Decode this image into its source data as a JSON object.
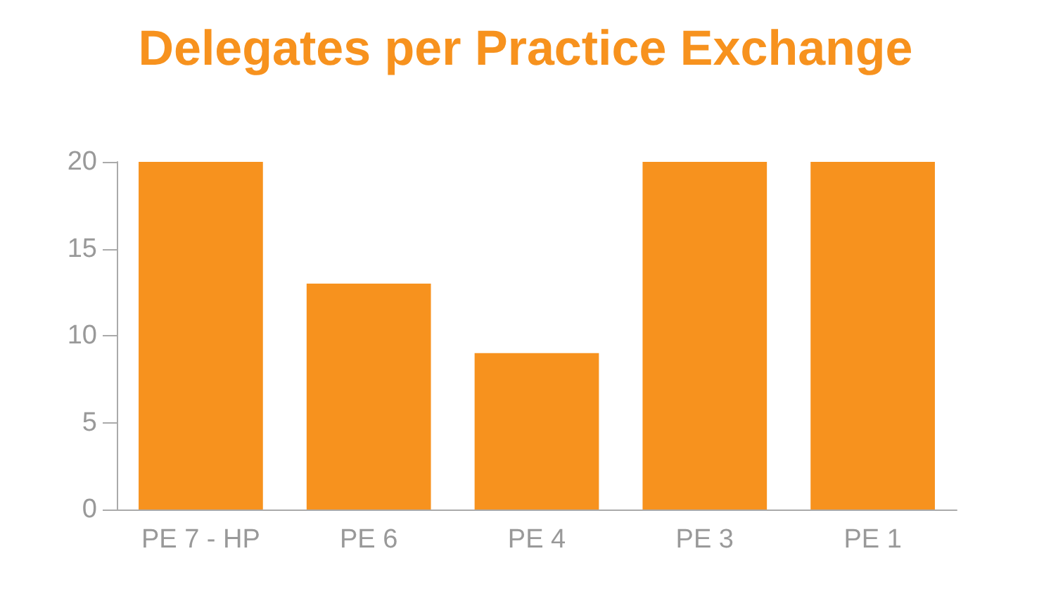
{
  "chart_data": {
    "type": "bar",
    "title": "Delegates per Practice Exchange",
    "categories": [
      "PE 7 - HP",
      "PE 6",
      "PE 4",
      "PE 3",
      "PE 1"
    ],
    "values": [
      20,
      13,
      9,
      20,
      20
    ],
    "color": "#f7921e",
    "ylim": [
      0,
      20
    ],
    "yticks": [
      0,
      5,
      10,
      15,
      20
    ],
    "grid": false
  }
}
